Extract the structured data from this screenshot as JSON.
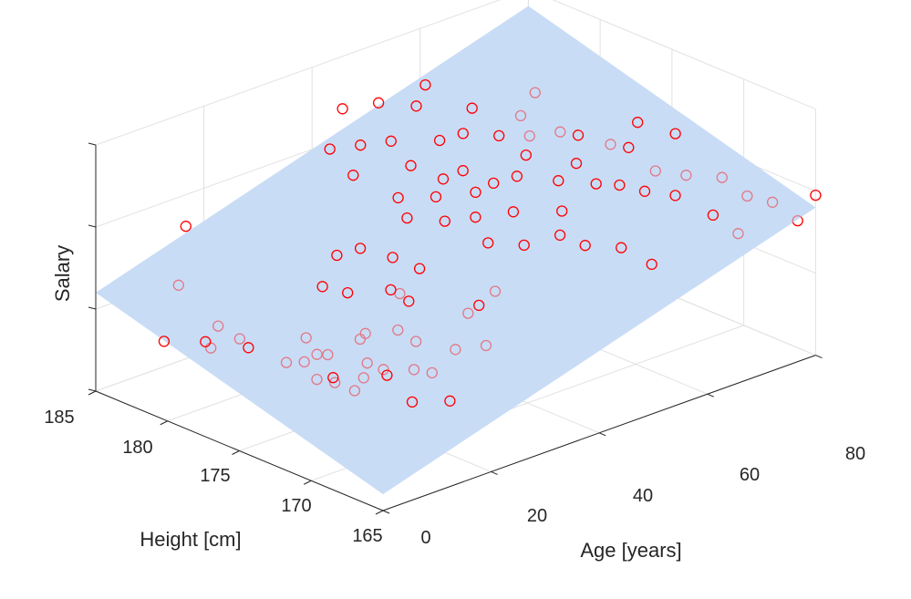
{
  "chart_data": {
    "type": "scatter",
    "title": "",
    "xlabel": "Age [years]",
    "ylabel": "Height [cm]",
    "zlabel": "Salary",
    "xlim": [
      0,
      80
    ],
    "ylim": [
      165,
      185
    ],
    "zlim": [
      0,
      3
    ],
    "xticks": [
      "0",
      "20",
      "40",
      "60",
      "80"
    ],
    "yticks": [
      "165",
      "170",
      "175",
      "180",
      "185"
    ],
    "grid": true,
    "colors": {
      "points": "#ff0000",
      "plane": "#c9dcf5",
      "axis": "#262626",
      "grid": "#e1e1e1"
    },
    "plane": {
      "intercept": 0.2,
      "slope_age": 0.02,
      "slope_height": 0.05,
      "height_ref": 165
    },
    "points": [
      {
        "age": 2,
        "height": 181,
        "z": 0.85,
        "above": true
      },
      {
        "age": 3,
        "height": 175.5,
        "z": 1.15,
        "above": true
      },
      {
        "age": 8,
        "height": 180,
        "z": 0.7,
        "above": false
      },
      {
        "age": 12,
        "height": 181,
        "z": 0.8,
        "above": false
      },
      {
        "age": 14,
        "height": 184,
        "z": 1.75,
        "above": true
      },
      {
        "age": 16,
        "height": 181,
        "z": 0.55,
        "above": false
      },
      {
        "age": 18,
        "height": 173,
        "z": 1.15,
        "above": false
      },
      {
        "age": 7,
        "height": 180,
        "z": 0.8,
        "above": true
      },
      {
        "age": 12,
        "height": 175,
        "z": 0.8,
        "above": false
      },
      {
        "age": 15,
        "height": 176,
        "z": 0.95,
        "above": false
      },
      {
        "age": 17,
        "height": 172.5,
        "z": 0.85,
        "above": false
      },
      {
        "age": 13,
        "height": 174.5,
        "z": 0.6,
        "above": false
      },
      {
        "age": 15,
        "height": 174,
        "z": 0.55,
        "above": false
      },
      {
        "age": 17,
        "height": 176,
        "z": 0.7,
        "above": false
      },
      {
        "age": 19,
        "height": 176,
        "z": 0.65,
        "above": false
      },
      {
        "age": 16,
        "height": 173,
        "z": 0.5,
        "above": false
      },
      {
        "age": 18,
        "height": 171.5,
        "z": 0.75,
        "above": true
      },
      {
        "age": 14,
        "height": 177,
        "z": 0.6,
        "above": false
      },
      {
        "age": 16,
        "height": 174.5,
        "z": 0.55,
        "above": true
      },
      {
        "age": 19,
        "height": 173.5,
        "z": 0.55,
        "above": false
      },
      {
        "age": 20,
        "height": 172.5,
        "z": 0.7,
        "above": false
      },
      {
        "age": 21,
        "height": 174.5,
        "z": 0.9,
        "above": false
      },
      {
        "age": 20,
        "height": 170.5,
        "z": 0.45,
        "above": true
      },
      {
        "age": 23,
        "height": 171.5,
        "z": 0.7,
        "above": false
      },
      {
        "age": 23,
        "height": 169,
        "z": 0.5,
        "above": true
      },
      {
        "age": 26,
        "height": 172.5,
        "z": 0.9,
        "above": false
      },
      {
        "age": 25,
        "height": 171,
        "z": 0.65,
        "above": false
      },
      {
        "age": 28,
        "height": 170.5,
        "z": 0.9,
        "above": false
      },
      {
        "age": 31,
        "height": 169.5,
        "z": 0.95,
        "above": false
      },
      {
        "age": 33,
        "height": 171.5,
        "z": 1.15,
        "above": false
      },
      {
        "age": 35,
        "height": 171.5,
        "z": 1.2,
        "above": true
      },
      {
        "age": 38,
        "height": 171.5,
        "z": 1.3,
        "above": false
      },
      {
        "age": 30,
        "height": 174.5,
        "z": 1.15,
        "above": true
      },
      {
        "age": 22,
        "height": 177.5,
        "z": 1.3,
        "above": true
      },
      {
        "age": 24,
        "height": 176.5,
        "z": 1.25,
        "above": true
      },
      {
        "age": 26,
        "height": 178,
        "z": 1.55,
        "above": true
      },
      {
        "age": 29,
        "height": 177.5,
        "z": 1.6,
        "above": true
      },
      {
        "age": 31,
        "height": 176,
        "z": 1.55,
        "above": true
      },
      {
        "age": 32,
        "height": 174.5,
        "z": 1.5,
        "above": true
      },
      {
        "age": 28,
        "height": 175,
        "z": 1.3,
        "above": true
      },
      {
        "age": 33,
        "height": 179.5,
        "z": 2.25,
        "above": true
      },
      {
        "age": 36,
        "height": 177.5,
        "z": 2.05,
        "above": true
      },
      {
        "age": 39,
        "height": 176,
        "z": 2.1,
        "above": true
      },
      {
        "age": 41,
        "height": 178.5,
        "z": 2.25,
        "above": true
      },
      {
        "age": 43,
        "height": 177,
        "z": 2.15,
        "above": true
      },
      {
        "age": 45,
        "height": 175.5,
        "z": 2.05,
        "above": true
      },
      {
        "age": 42,
        "height": 173.5,
        "z": 1.65,
        "above": true
      },
      {
        "age": 48,
        "height": 174,
        "z": 1.85,
        "above": true
      },
      {
        "age": 50,
        "height": 171.5,
        "z": 1.7,
        "above": true
      },
      {
        "age": 46,
        "height": 172.5,
        "z": 1.6,
        "above": true
      },
      {
        "age": 52,
        "height": 170.5,
        "z": 1.6,
        "above": true
      },
      {
        "age": 56,
        "height": 169.5,
        "z": 1.55,
        "above": true
      },
      {
        "age": 59,
        "height": 168.5,
        "z": 1.35,
        "above": true
      },
      {
        "age": 53,
        "height": 172.5,
        "z": 1.85,
        "above": true
      },
      {
        "age": 55,
        "height": 173.5,
        "z": 2.1,
        "above": true
      },
      {
        "age": 58,
        "height": 172,
        "z": 2.1,
        "above": true
      },
      {
        "age": 61,
        "height": 171.5,
        "z": 2.05,
        "above": true
      },
      {
        "age": 63,
        "height": 170.5,
        "z": 2.0,
        "above": true
      },
      {
        "age": 66,
        "height": 169.5,
        "z": 1.95,
        "above": true
      },
      {
        "age": 69,
        "height": 168,
        "z": 1.75,
        "above": true
      },
      {
        "age": 71,
        "height": 167,
        "z": 1.55,
        "above": false
      },
      {
        "age": 74,
        "height": 167.5,
        "z": 1.9,
        "above": false
      },
      {
        "age": 76,
        "height": 166.5,
        "z": 1.85,
        "above": false
      },
      {
        "age": 78,
        "height": 165.5,
        "z": 1.65,
        "above": false
      },
      {
        "age": 80,
        "height": 165,
        "z": 1.95,
        "above": true
      },
      {
        "age": 72,
        "height": 168.5,
        "z": 2.1,
        "above": false
      },
      {
        "age": 68,
        "height": 169.5,
        "z": 2.15,
        "above": false
      },
      {
        "age": 65,
        "height": 170.5,
        "z": 2.2,
        "above": false
      },
      {
        "age": 62,
        "height": 172.5,
        "z": 2.45,
        "above": false
      },
      {
        "age": 58,
        "height": 174.5,
        "z": 2.55,
        "above": false
      },
      {
        "age": 55,
        "height": 175.5,
        "z": 2.5,
        "above": false
      },
      {
        "age": 52,
        "height": 176.5,
        "z": 2.5,
        "above": true
      },
      {
        "age": 48,
        "height": 177.5,
        "z": 2.55,
        "above": true
      },
      {
        "age": 45,
        "height": 178,
        "z": 2.5,
        "above": true
      },
      {
        "age": 40,
        "height": 179.5,
        "z": 2.5,
        "above": true
      },
      {
        "age": 37,
        "height": 180.5,
        "z": 2.45,
        "above": true
      },
      {
        "age": 34,
        "height": 181.5,
        "z": 2.4,
        "above": true
      },
      {
        "age": 44,
        "height": 176,
        "z": 2.3,
        "above": true
      },
      {
        "age": 47,
        "height": 175,
        "z": 2.15,
        "above": true
      },
      {
        "age": 50,
        "height": 174.5,
        "z": 2.2,
        "above": true
      },
      {
        "age": 53,
        "height": 175,
        "z": 2.35,
        "above": true
      },
      {
        "age": 57,
        "height": 173,
        "z": 2.3,
        "above": true
      },
      {
        "age": 60,
        "height": 174,
        "z": 2.5,
        "above": true
      },
      {
        "age": 64,
        "height": 172,
        "z": 2.4,
        "above": true
      },
      {
        "age": 67,
        "height": 172.5,
        "z": 2.6,
        "above": true
      },
      {
        "age": 51,
        "height": 178,
        "z": 2.75,
        "above": true
      },
      {
        "age": 46,
        "height": 180,
        "z": 2.75,
        "above": true
      },
      {
        "age": 49,
        "height": 180.5,
        "z": 2.9,
        "above": true
      },
      {
        "age": 43,
        "height": 181.5,
        "z": 2.75,
        "above": true
      },
      {
        "age": 39,
        "height": 182.5,
        "z": 2.7,
        "above": true
      },
      {
        "age": 70,
        "height": 171,
        "z": 2.5,
        "above": true
      },
      {
        "age": 56,
        "height": 176.5,
        "z": 2.65,
        "above": false
      },
      {
        "age": 60,
        "height": 177,
        "z": 2.8,
        "above": false
      },
      {
        "age": 41,
        "height": 174,
        "z": 1.95,
        "above": true
      },
      {
        "age": 38,
        "height": 175,
        "z": 1.9,
        "above": true
      },
      {
        "age": 35,
        "height": 176.5,
        "z": 1.9,
        "above": true
      },
      {
        "age": 27,
        "height": 174,
        "z": 1.35,
        "above": false
      },
      {
        "age": 24,
        "height": 173,
        "z": 1.05,
        "above": false
      },
      {
        "age": 10,
        "height": 183,
        "z": 1.2,
        "above": false
      }
    ]
  }
}
